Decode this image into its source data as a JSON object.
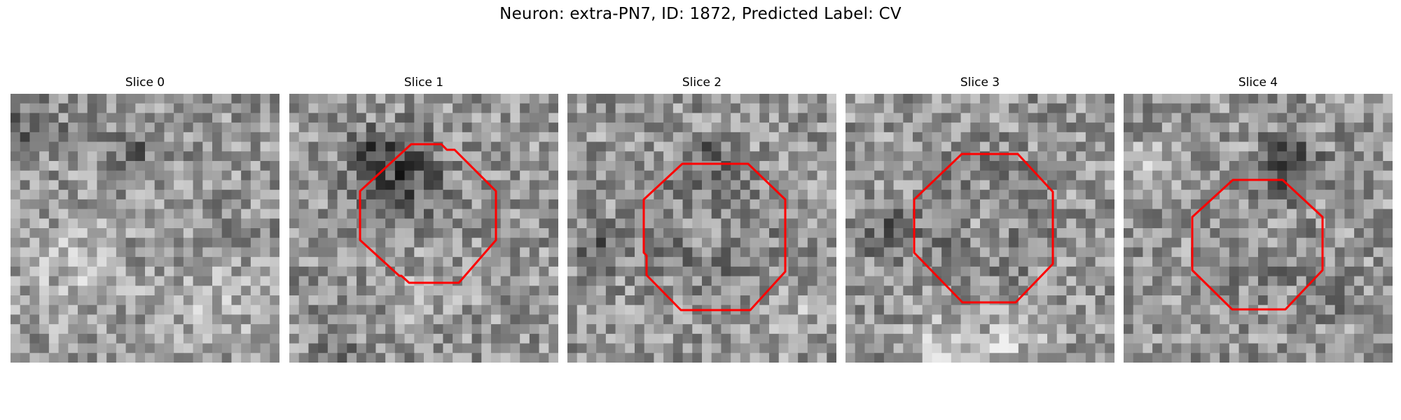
{
  "figure": {
    "title": "Neuron: extra-PN7, ID: 1872, Predicted Label: CV"
  },
  "panels": [
    {
      "label": "Slice 0",
      "seed": 11,
      "has_outline": false,
      "dark_blobs": "top-left and center-top dark patches, brighter bottom"
    },
    {
      "label": "Slice 1",
      "seed": 23,
      "has_outline": true,
      "dark_blobs": "dark vesicle interior"
    },
    {
      "label": "Slice 2",
      "seed": 37,
      "has_outline": true,
      "dark_blobs": "dark ring around lighter center"
    },
    {
      "label": "Slice 3",
      "seed": 41,
      "has_outline": true,
      "dark_blobs": "dark ring around lighter center"
    },
    {
      "label": "Slice 4",
      "seed": 59,
      "has_outline": true,
      "dark_blobs": "dark arc below center, dark top-right"
    }
  ],
  "colors": {
    "outline": "#ff0000",
    "background": "#ffffff"
  },
  "image_style": "grayscale 28x28 pixelated electron-microscopy crops"
}
